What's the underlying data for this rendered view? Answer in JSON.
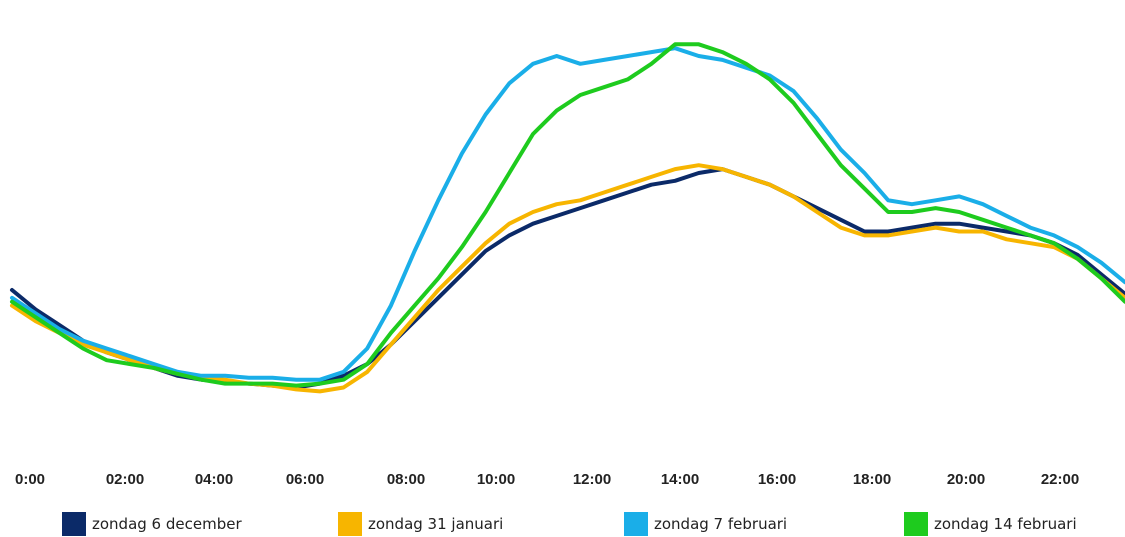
{
  "chart_data": {
    "type": "line",
    "title": "",
    "xlabel": "",
    "ylabel": "",
    "grid": false,
    "legend_position": "bottom",
    "x_ticks": [
      "0:00",
      "02:00",
      "04:00",
      "06:00",
      "08:00",
      "10:00",
      "12:00",
      "14:00",
      "16:00",
      "18:00",
      "20:00",
      "22:00"
    ],
    "x_unit": "hours",
    "x_range": [
      0,
      23.5
    ],
    "y_range": [
      0,
      100
    ],
    "series": [
      {
        "name": "zondag 6 december",
        "color": "#0b2a68",
        "points": [
          [
            0,
            40
          ],
          [
            0.5,
            35
          ],
          [
            1,
            31
          ],
          [
            1.5,
            27
          ],
          [
            2,
            24
          ],
          [
            2.5,
            22
          ],
          [
            3,
            20
          ],
          [
            3.5,
            18
          ],
          [
            4,
            17
          ],
          [
            4.5,
            16.5
          ],
          [
            5,
            16
          ],
          [
            5.5,
            15.5
          ],
          [
            6,
            15
          ],
          [
            6.5,
            16
          ],
          [
            7,
            18
          ],
          [
            7.5,
            21
          ],
          [
            8,
            26
          ],
          [
            8.5,
            32
          ],
          [
            9,
            38
          ],
          [
            9.5,
            44
          ],
          [
            10,
            50
          ],
          [
            10.5,
            54
          ],
          [
            11,
            57
          ],
          [
            11.5,
            59
          ],
          [
            12,
            61
          ],
          [
            12.5,
            63
          ],
          [
            13,
            65
          ],
          [
            13.5,
            67
          ],
          [
            14,
            68
          ],
          [
            14.5,
            70
          ],
          [
            15,
            71
          ],
          [
            15.5,
            69
          ],
          [
            16,
            67
          ],
          [
            16.5,
            64
          ],
          [
            17,
            61
          ],
          [
            17.5,
            58
          ],
          [
            18,
            55
          ],
          [
            18.5,
            55
          ],
          [
            19,
            56
          ],
          [
            19.5,
            57
          ],
          [
            20,
            57
          ],
          [
            20.5,
            56
          ],
          [
            21,
            55
          ],
          [
            21.5,
            54
          ],
          [
            22,
            52
          ],
          [
            22.5,
            49
          ],
          [
            23,
            44
          ],
          [
            23.5,
            39
          ]
        ]
      },
      {
        "name": "zondag 31 januari",
        "color": "#f7b500",
        "points": [
          [
            0,
            36
          ],
          [
            0.5,
            32
          ],
          [
            1,
            29
          ],
          [
            1.5,
            26
          ],
          [
            2,
            24
          ],
          [
            2.5,
            22
          ],
          [
            3,
            20
          ],
          [
            3.5,
            18.5
          ],
          [
            4,
            17.5
          ],
          [
            4.5,
            17
          ],
          [
            5,
            16
          ],
          [
            5.5,
            15.5
          ],
          [
            6,
            14.5
          ],
          [
            6.5,
            14
          ],
          [
            7,
            15
          ],
          [
            7.5,
            19
          ],
          [
            8,
            26
          ],
          [
            8.5,
            33
          ],
          [
            9,
            40
          ],
          [
            9.5,
            46
          ],
          [
            10,
            52
          ],
          [
            10.5,
            57
          ],
          [
            11,
            60
          ],
          [
            11.5,
            62
          ],
          [
            12,
            63
          ],
          [
            12.5,
            65
          ],
          [
            13,
            67
          ],
          [
            13.5,
            69
          ],
          [
            14,
            71
          ],
          [
            14.5,
            72
          ],
          [
            15,
            71
          ],
          [
            15.5,
            69
          ],
          [
            16,
            67
          ],
          [
            16.5,
            64
          ],
          [
            17,
            60
          ],
          [
            17.5,
            56
          ],
          [
            18,
            54
          ],
          [
            18.5,
            54
          ],
          [
            19,
            55
          ],
          [
            19.5,
            56
          ],
          [
            20,
            55
          ],
          [
            20.5,
            55
          ],
          [
            21,
            53
          ],
          [
            21.5,
            52
          ],
          [
            22,
            51
          ],
          [
            22.5,
            48
          ],
          [
            23,
            43
          ],
          [
            23.5,
            38
          ]
        ]
      },
      {
        "name": "zondag 7 februari",
        "color": "#1aaee8",
        "points": [
          [
            0,
            38
          ],
          [
            0.5,
            34
          ],
          [
            1,
            30
          ],
          [
            1.5,
            27
          ],
          [
            2,
            25
          ],
          [
            2.5,
            23
          ],
          [
            3,
            21
          ],
          [
            3.5,
            19
          ],
          [
            4,
            18
          ],
          [
            4.5,
            18
          ],
          [
            5,
            17.5
          ],
          [
            5.5,
            17.5
          ],
          [
            6,
            17
          ],
          [
            6.5,
            17
          ],
          [
            7,
            19
          ],
          [
            7.5,
            25
          ],
          [
            8,
            36
          ],
          [
            8.5,
            50
          ],
          [
            9,
            63
          ],
          [
            9.5,
            75
          ],
          [
            10,
            85
          ],
          [
            10.5,
            93
          ],
          [
            11,
            98
          ],
          [
            11.5,
            100
          ],
          [
            12,
            98
          ],
          [
            12.5,
            99
          ],
          [
            13,
            100
          ],
          [
            13.5,
            101
          ],
          [
            14,
            102
          ],
          [
            14.5,
            100
          ],
          [
            15,
            99
          ],
          [
            15.5,
            97
          ],
          [
            16,
            95
          ],
          [
            16.5,
            91
          ],
          [
            17,
            84
          ],
          [
            17.5,
            76
          ],
          [
            18,
            70
          ],
          [
            18.5,
            63
          ],
          [
            19,
            62
          ],
          [
            19.5,
            63
          ],
          [
            20,
            64
          ],
          [
            20.5,
            62
          ],
          [
            21,
            59
          ],
          [
            21.5,
            56
          ],
          [
            22,
            54
          ],
          [
            22.5,
            51
          ],
          [
            23,
            47
          ],
          [
            23.5,
            42
          ]
        ]
      },
      {
        "name": "zondag 14 februari",
        "color": "#1ecb1e",
        "points": [
          [
            0,
            37
          ],
          [
            0.5,
            33
          ],
          [
            1,
            29
          ],
          [
            1.5,
            25
          ],
          [
            2,
            22
          ],
          [
            2.5,
            21
          ],
          [
            3,
            20
          ],
          [
            3.5,
            18.5
          ],
          [
            4,
            17
          ],
          [
            4.5,
            16
          ],
          [
            5,
            16
          ],
          [
            5.5,
            16
          ],
          [
            6,
            15.5
          ],
          [
            6.5,
            16
          ],
          [
            7,
            17
          ],
          [
            7.5,
            21
          ],
          [
            8,
            29
          ],
          [
            8.5,
            36
          ],
          [
            9,
            43
          ],
          [
            9.5,
            51
          ],
          [
            10,
            60
          ],
          [
            10.5,
            70
          ],
          [
            11,
            80
          ],
          [
            11.5,
            86
          ],
          [
            12,
            90
          ],
          [
            12.5,
            92
          ],
          [
            13,
            94
          ],
          [
            13.5,
            98
          ],
          [
            14,
            103
          ],
          [
            14.5,
            103
          ],
          [
            15,
            101
          ],
          [
            15.5,
            98
          ],
          [
            16,
            94
          ],
          [
            16.5,
            88
          ],
          [
            17,
            80
          ],
          [
            17.5,
            72
          ],
          [
            18,
            66
          ],
          [
            18.5,
            60
          ],
          [
            19,
            60
          ],
          [
            19.5,
            61
          ],
          [
            20,
            60
          ],
          [
            20.5,
            58
          ],
          [
            21,
            56
          ],
          [
            21.5,
            54
          ],
          [
            22,
            52
          ],
          [
            22.5,
            48
          ],
          [
            23,
            43
          ],
          [
            23.5,
            37
          ]
        ]
      }
    ]
  }
}
